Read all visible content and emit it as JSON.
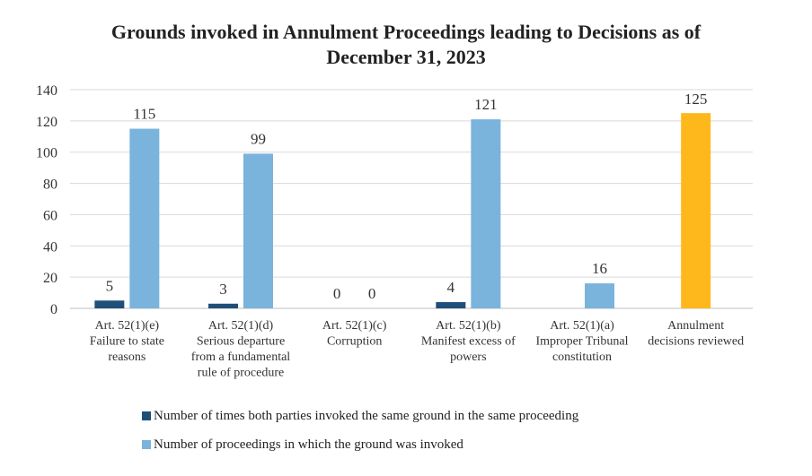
{
  "chart_data": {
    "type": "bar",
    "title_line1": "Grounds invoked in Annulment Proceedings leading to Decisions as of",
    "title_line2": "December 31, 2023",
    "ylim": [
      0,
      140
    ],
    "yticks": [
      0,
      20,
      40,
      60,
      80,
      100,
      120,
      140
    ],
    "categories": [
      [
        "Art. 52(1)(e)",
        "Failure to state",
        "reasons"
      ],
      [
        "Art. 52(1)(d)",
        "Serious departure",
        "from a fundamental",
        "rule of procedure"
      ],
      [
        "Art. 52(1)(c)",
        "Corruption"
      ],
      [
        "Art. 52(1)(b)",
        "Manifest excess of",
        "powers"
      ],
      [
        "Art. 52(1)(a)",
        "Improper Tribunal",
        "constitution"
      ],
      [
        "Annulment",
        "decisions reviewed"
      ]
    ],
    "series": [
      {
        "name": "Number of times both parties invoked the same ground in the same proceeding",
        "color": "#1f4e79",
        "values": [
          5,
          3,
          0,
          4,
          null,
          null
        ],
        "labels": [
          "5",
          "3",
          "0",
          "4",
          "",
          ""
        ]
      },
      {
        "name": "Number of proceedings in which the ground was invoked",
        "color": "#7ab3dc",
        "values": [
          115,
          99,
          0,
          121,
          16,
          null
        ],
        "labels": [
          "115",
          "99",
          "0",
          "121",
          "16",
          ""
        ]
      }
    ],
    "total": {
      "category_index": 5,
      "value": 125,
      "label": "125",
      "color": "#ffb81c"
    },
    "grid": true
  }
}
